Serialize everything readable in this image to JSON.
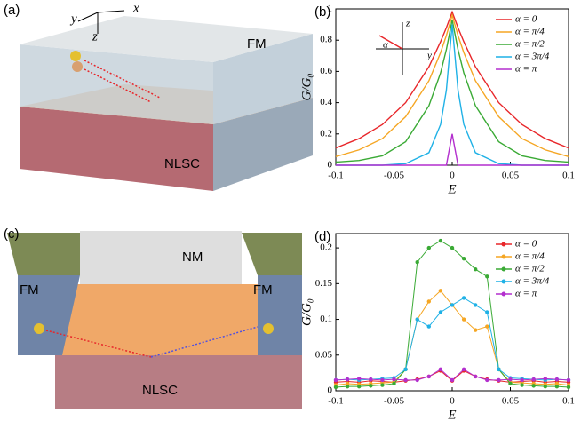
{
  "panel_a": {
    "label": "(a)",
    "top_layer": "FM",
    "bottom_layer": "NLSC",
    "axis_y": "y",
    "axis_x": "x",
    "axis_z": "z"
  },
  "panel_c": {
    "label": "(c)",
    "middle": "NM",
    "left": "FM",
    "right": "FM",
    "bottom": "NLSC"
  },
  "chart_data": [
    {
      "type": "line",
      "panel_label": "(b)",
      "xlabel": "E",
      "ylabel": "G/G₀",
      "inset_labels": [
        "z",
        "y",
        "α"
      ],
      "x": [
        -0.1,
        -0.08,
        -0.06,
        -0.04,
        -0.02,
        -0.01,
        -0.005,
        0,
        0.005,
        0.01,
        0.02,
        0.04,
        0.06,
        0.08,
        0.1
      ],
      "series": [
        {
          "name": "α = 0",
          "color": "#e8262a",
          "values": [
            0.11,
            0.17,
            0.26,
            0.4,
            0.63,
            0.79,
            0.88,
            0.98,
            0.88,
            0.79,
            0.63,
            0.4,
            0.26,
            0.17,
            0.11
          ]
        },
        {
          "name": "α = π/4",
          "color": "#f5a623",
          "values": [
            0.055,
            0.098,
            0.17,
            0.31,
            0.54,
            0.72,
            0.83,
            0.96,
            0.83,
            0.72,
            0.54,
            0.31,
            0.17,
            0.098,
            0.055
          ]
        },
        {
          "name": "α = π/2",
          "color": "#3aaa35",
          "values": [
            0.02,
            0.03,
            0.06,
            0.15,
            0.38,
            0.59,
            0.74,
            0.93,
            0.74,
            0.59,
            0.38,
            0.15,
            0.06,
            0.03,
            0.02
          ]
        },
        {
          "name": "α = 3π/4",
          "color": "#1fb1e6",
          "values": [
            0,
            0,
            0,
            0.01,
            0.08,
            0.26,
            0.48,
            0.9,
            0.48,
            0.26,
            0.08,
            0.01,
            0,
            0,
            0
          ]
        },
        {
          "name": "α = π",
          "color": "#b32fce",
          "values": [
            0,
            0,
            0,
            0,
            0,
            0,
            0,
            0.2,
            0,
            0,
            0,
            0,
            0,
            0,
            0
          ]
        }
      ],
      "xlim": [
        -0.1,
        0.1
      ],
      "xticks": [
        -0.1,
        -0.05,
        0,
        0.05,
        0.1
      ],
      "ylim": [
        0,
        1
      ],
      "yticks": [
        0,
        0.2,
        0.4,
        0.6,
        0.8,
        1
      ],
      "markers": false,
      "legend": "upper right"
    },
    {
      "type": "line",
      "panel_label": "(d)",
      "xlabel": "E",
      "ylabel": "G/G₀",
      "x": [
        -0.1,
        -0.09,
        -0.08,
        -0.07,
        -0.06,
        -0.05,
        -0.04,
        -0.03,
        -0.02,
        -0.01,
        0,
        0.01,
        0.02,
        0.03,
        0.04,
        0.05,
        0.06,
        0.07,
        0.08,
        0.09,
        0.1
      ],
      "series": [
        {
          "name": "α = 0",
          "color": "#e8262a",
          "values": [
            0.012,
            0.013,
            0.012,
            0.014,
            0.013,
            0.012,
            0.014,
            0.016,
            0.02,
            0.028,
            0.014,
            0.028,
            0.02,
            0.016,
            0.014,
            0.012,
            0.013,
            0.014,
            0.012,
            0.013,
            0.012
          ]
        },
        {
          "name": "α = π/4",
          "color": "#f5a623",
          "values": [
            0.008,
            0.01,
            0.009,
            0.01,
            0.011,
            0.012,
            0.03,
            0.1,
            0.125,
            0.14,
            0.12,
            0.1,
            0.085,
            0.09,
            0.03,
            0.012,
            0.011,
            0.01,
            0.009,
            0.01,
            0.008
          ]
        },
        {
          "name": "α = π/2",
          "color": "#3aaa35",
          "values": [
            0.005,
            0.006,
            0.006,
            0.007,
            0.008,
            0.01,
            0.03,
            0.18,
            0.2,
            0.21,
            0.2,
            0.185,
            0.17,
            0.16,
            0.03,
            0.01,
            0.008,
            0.007,
            0.006,
            0.006,
            0.005
          ]
        },
        {
          "name": "α = 3π/4",
          "color": "#1fb1e6",
          "values": [
            0.015,
            0.016,
            0.015,
            0.016,
            0.017,
            0.018,
            0.03,
            0.1,
            0.09,
            0.11,
            0.12,
            0.13,
            0.12,
            0.11,
            0.03,
            0.018,
            0.017,
            0.016,
            0.015,
            0.016,
            0.015
          ]
        },
        {
          "name": "α = π",
          "color": "#b32fce",
          "values": [
            0.015,
            0.016,
            0.017,
            0.016,
            0.015,
            0.016,
            0.015,
            0.015,
            0.02,
            0.03,
            0.015,
            0.03,
            0.02,
            0.015,
            0.015,
            0.016,
            0.015,
            0.016,
            0.017,
            0.016,
            0.015
          ]
        }
      ],
      "xlim": [
        -0.1,
        0.1
      ],
      "xticks": [
        -0.1,
        -0.05,
        0,
        0.05,
        0.1
      ],
      "ylim": [
        0,
        0.22
      ],
      "yticks": [
        0,
        0.05,
        0.1,
        0.15,
        0.2
      ],
      "markers": true,
      "legend": "upper right"
    }
  ]
}
